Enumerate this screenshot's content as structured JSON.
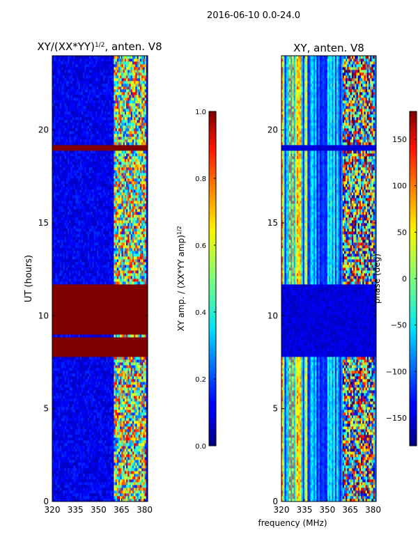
{
  "suptitle": "2016-06-10 0.0-24.0",
  "shared_xlabel": "frequency (MHz)",
  "colors": {
    "deep_blue": "#00008f",
    "blue": "#0010ff",
    "cyan": "#00d8ff",
    "green": "#7dff7a",
    "yellow": "#ffe600",
    "orange": "#ff8000",
    "red": "#e00000",
    "dark_red": "#800000"
  },
  "chart_data": [
    {
      "type": "heatmap",
      "title_prefix": "XY/(XX*YY)",
      "title_sup": "1/2",
      "title_suffix": ", anten. V8",
      "xlabel": "",
      "ylabel": "UT (hours)",
      "xlim": [
        320,
        382
      ],
      "ylim": [
        0,
        24
      ],
      "xticks": [
        "320",
        "335",
        "350",
        "365",
        "380"
      ],
      "xtick_values": [
        320,
        335,
        350,
        365,
        380
      ],
      "yticks": [
        "0",
        "5",
        "10",
        "15",
        "20"
      ],
      "ytick_values": [
        0,
        5,
        10,
        15,
        20
      ],
      "colorbar": {
        "label_prefix": "XY amp. / (XX*YY amp)",
        "label_sup": "1/2",
        "range": [
          0.0,
          1.0
        ],
        "ticks": [
          "0.0",
          "0.2",
          "0.4",
          "0.6",
          "0.8",
          "1.0"
        ],
        "tick_values": [
          0.0,
          0.2,
          0.4,
          0.6,
          0.8,
          1.0
        ]
      },
      "active_band_mhz": [
        360,
        380
      ],
      "flagged_hours": [
        [
          7.8,
          8.8
        ],
        [
          9.0,
          11.6
        ],
        [
          18.8,
          19.2
        ]
      ],
      "flagged_value": 1.0
    },
    {
      "type": "heatmap",
      "title_prefix": "XY, anten. V8",
      "xlabel": "frequency (MHz)",
      "ylabel": "",
      "overlap_label": "phase (deg)",
      "xlim": [
        320,
        382
      ],
      "ylim": [
        0,
        24
      ],
      "xticks": [
        "320",
        "335",
        "350",
        "365",
        "380"
      ],
      "xtick_values": [
        320,
        335,
        350,
        365,
        380
      ],
      "yticks": [
        "0",
        "5",
        "10",
        "15",
        "20"
      ],
      "ytick_values": [
        0,
        5,
        10,
        15,
        20
      ],
      "colorbar": {
        "label": "phase (deg)",
        "range": [
          -180,
          180
        ],
        "ticks": [
          "−150",
          "−100",
          "−50",
          "0",
          "50",
          "100",
          "150"
        ],
        "tick_values": [
          -150,
          -100,
          -50,
          0,
          50,
          100,
          150
        ]
      },
      "active_band_mhz": [
        360,
        380
      ],
      "flagged_hours": [
        [
          7.8,
          11.6
        ],
        [
          18.8,
          19.2
        ]
      ]
    }
  ]
}
